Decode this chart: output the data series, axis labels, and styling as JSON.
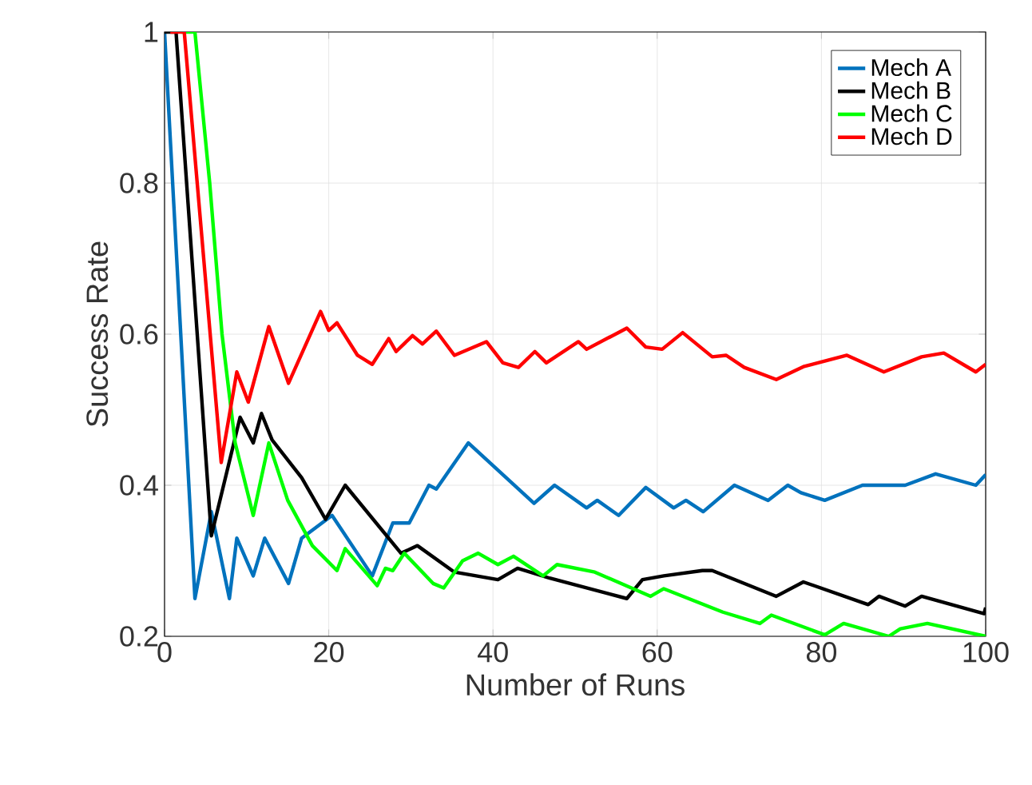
{
  "chart_data": {
    "type": "line",
    "xlabel": "Number of Runs",
    "ylabel": "Success Rate",
    "xlim": [
      0,
      100
    ],
    "xticks": [
      0,
      20,
      40,
      60,
      80,
      100
    ],
    "ylim": [
      0.2,
      1
    ],
    "yticks": [
      0.2,
      0.4,
      0.6,
      0.8,
      1
    ],
    "grid": true,
    "legend": "top right",
    "marker": "none",
    "line_style": "solid",
    "series": [
      {
        "name": "Mech A",
        "color": "#0072bd",
        "x": [
          0,
          3.7,
          5.7,
          7.9,
          8.8,
          10.8,
          12.2,
          15.1,
          16.7,
          20.4,
          25.3,
          27.8,
          29.8,
          32.2,
          33.1,
          37,
          45,
          47.5,
          51.4,
          52.7,
          55.3,
          58.6,
          62,
          63.5,
          65.6,
          69.4,
          73.5,
          75.9,
          77.5,
          80.4,
          85,
          87,
          90.2,
          93.9,
          98.8,
          100
        ],
        "values": [
          1,
          0.25,
          0.365,
          0.25,
          0.33,
          0.28,
          0.33,
          0.27,
          0.33,
          0.36,
          0.28,
          0.35,
          0.35,
          0.4,
          0.395,
          0.456,
          0.376,
          0.4,
          0.37,
          0.38,
          0.36,
          0.397,
          0.37,
          0.38,
          0.365,
          0.4,
          0.38,
          0.4,
          0.39,
          0.38,
          0.4,
          0.4,
          0.4,
          0.415,
          0.4,
          0.414
        ]
      },
      {
        "name": "Mech B",
        "color": "#000000",
        "x": [
          0,
          1.4,
          5.7,
          9.2,
          10.8,
          11.8,
          13.1,
          16.7,
          19.6,
          22,
          28.8,
          30.8,
          35.3,
          40.6,
          43,
          46.9,
          56.3,
          58.2,
          60.8,
          65.5,
          66.7,
          74.5,
          77.8,
          85.7,
          87,
          90.2,
          92.2,
          99.8,
          100
        ],
        "values": [
          1,
          1,
          0.333,
          0.49,
          0.456,
          0.495,
          0.46,
          0.41,
          0.355,
          0.4,
          0.31,
          0.32,
          0.285,
          0.275,
          0.29,
          0.277,
          0.25,
          0.275,
          0.28,
          0.287,
          0.287,
          0.253,
          0.272,
          0.242,
          0.253,
          0.24,
          0.253,
          0.23,
          0.238
        ]
      },
      {
        "name": "Mech C",
        "color": "#00ff00",
        "x": [
          2,
          3.7,
          5.5,
          7,
          8.6,
          10.8,
          12.7,
          15,
          18,
          21,
          22,
          25.9,
          26.9,
          27.8,
          29.2,
          32.7,
          34,
          36.3,
          38.2,
          40.6,
          42.5,
          46.1,
          47.8,
          52.4,
          59.2,
          60.8,
          68,
          72.5,
          73.9,
          80.4,
          82.7,
          88.2,
          89.6,
          92.9,
          100
        ],
        "values": [
          1,
          1,
          0.8,
          0.6,
          0.456,
          0.36,
          0.456,
          0.38,
          0.32,
          0.287,
          0.316,
          0.267,
          0.29,
          0.287,
          0.31,
          0.27,
          0.264,
          0.3,
          0.31,
          0.295,
          0.306,
          0.28,
          0.295,
          0.285,
          0.253,
          0.263,
          0.232,
          0.217,
          0.228,
          0.202,
          0.217,
          0.2,
          0.21,
          0.217,
          0.2
        ]
      },
      {
        "name": "Mech D",
        "color": "#ff0000",
        "x": [
          0.7,
          2.4,
          6.9,
          8.8,
          10.2,
          12.7,
          15.1,
          19,
          20,
          21,
          23.5,
          25.3,
          27.3,
          28.2,
          30.2,
          31.4,
          33.1,
          35.3,
          39.2,
          41.2,
          43.1,
          45.1,
          46.5,
          50.4,
          51.4,
          56.3,
          58.6,
          60.6,
          63.1,
          66.7,
          68.4,
          70.6,
          74.5,
          77.8,
          83.1,
          87.6,
          92.2,
          94.9,
          98.8,
          100
        ],
        "values": [
          1,
          1,
          0.43,
          0.55,
          0.51,
          0.61,
          0.535,
          0.63,
          0.605,
          0.615,
          0.572,
          0.56,
          0.594,
          0.577,
          0.598,
          0.587,
          0.604,
          0.572,
          0.59,
          0.562,
          0.556,
          0.577,
          0.562,
          0.59,
          0.58,
          0.608,
          0.583,
          0.58,
          0.602,
          0.57,
          0.572,
          0.556,
          0.54,
          0.557,
          0.572,
          0.55,
          0.57,
          0.575,
          0.55,
          0.56
        ]
      }
    ]
  }
}
